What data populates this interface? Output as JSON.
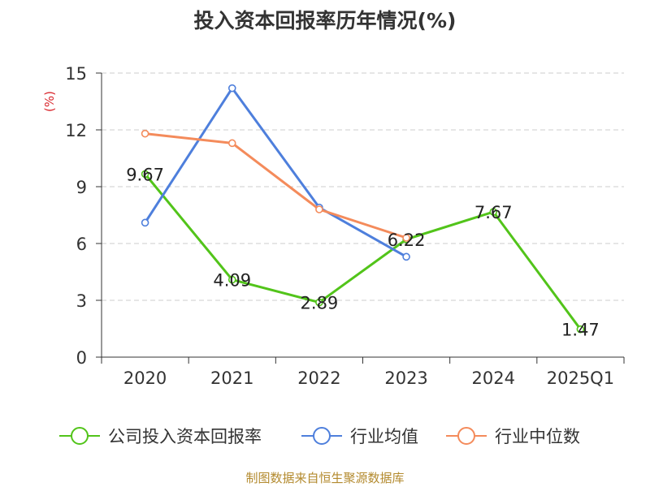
{
  "chart_data": {
    "type": "line",
    "title": "投入资本回报率历年情况(%)",
    "ylabel": "(%)",
    "categories": [
      "2020",
      "2021",
      "2022",
      "2023",
      "2024",
      "2025Q1"
    ],
    "ylim": [
      0,
      15
    ],
    "yticks": [
      0,
      3,
      6,
      9,
      12,
      15
    ],
    "grid": true,
    "legend_position": "bottom",
    "series": [
      {
        "name": "公司投入资本回报率",
        "color": "#52c41a",
        "values": [
          9.67,
          4.09,
          2.89,
          6.22,
          7.67,
          1.47
        ],
        "labels": [
          "9.67",
          "4.09",
          "2.89",
          "6.22",
          "7.67",
          "1.47"
        ]
      },
      {
        "name": "行业均值",
        "color": "#4e7fdc",
        "values": [
          7.1,
          14.2,
          7.9,
          5.3,
          null,
          null
        ]
      },
      {
        "name": "行业中位数",
        "color": "#f48b5b",
        "values": [
          11.8,
          11.3,
          7.8,
          6.3,
          null,
          null
        ]
      }
    ]
  },
  "source": "制图数据来自恒生聚源数据库"
}
